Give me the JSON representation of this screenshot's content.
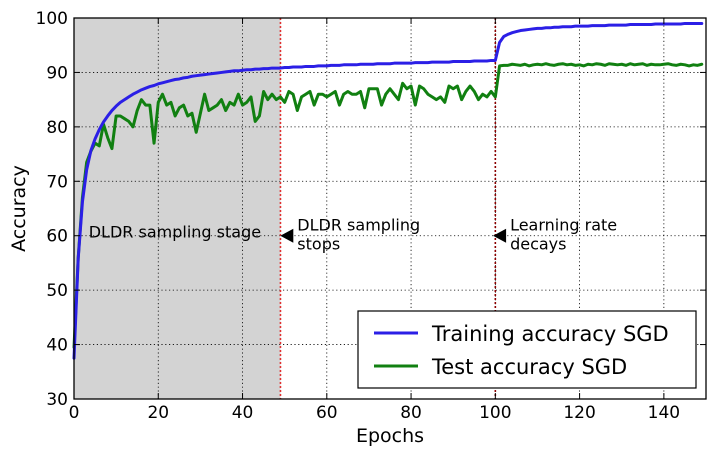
{
  "chart_data": {
    "type": "line",
    "title": "",
    "xlabel": "Epochs",
    "ylabel": "Accuracy",
    "xlim": [
      0,
      150
    ],
    "ylim": [
      30,
      100
    ],
    "xticks": [
      0,
      20,
      40,
      60,
      80,
      100,
      120,
      140
    ],
    "yticks": [
      30,
      40,
      50,
      60,
      70,
      80,
      90,
      100
    ],
    "grid": true,
    "legend_position": "bottom-right",
    "shaded_region": {
      "x_start": 0,
      "x_end": 49,
      "color": "#d3d3d3"
    },
    "vlines": [
      {
        "x": 49,
        "color": "#e03030"
      },
      {
        "x": 100,
        "color": "#8b0000"
      }
    ],
    "annotations": [
      {
        "text": "DLDR sampling stage",
        "x": 3.5,
        "y": 60.6
      },
      {
        "lines": [
          "DLDR sampling",
          "stops"
        ],
        "x": 53,
        "y": 60,
        "arrow": true
      },
      {
        "lines": [
          "Learning rate",
          "decays"
        ],
        "x": 103.5,
        "y": 60,
        "arrow": true
      }
    ],
    "series": [
      {
        "name": "Training accuracy SGD",
        "color": "#2b1fe6",
        "x": [
          0,
          1,
          2,
          3,
          4,
          5,
          6,
          7,
          8,
          9,
          10,
          11,
          12,
          13,
          14,
          15,
          16,
          17,
          18,
          19,
          20,
          21,
          22,
          23,
          24,
          25,
          26,
          27,
          28,
          29,
          30,
          31,
          32,
          33,
          34,
          35,
          36,
          37,
          38,
          39,
          40,
          41,
          42,
          43,
          44,
          45,
          46,
          47,
          48,
          49,
          50,
          51,
          52,
          53,
          54,
          55,
          56,
          57,
          58,
          59,
          60,
          61,
          62,
          63,
          64,
          65,
          66,
          67,
          68,
          69,
          70,
          71,
          72,
          73,
          74,
          75,
          76,
          77,
          78,
          79,
          80,
          81,
          82,
          83,
          84,
          85,
          86,
          87,
          88,
          89,
          90,
          91,
          92,
          93,
          94,
          95,
          96,
          97,
          98,
          99,
          100,
          101,
          102,
          103,
          104,
          105,
          106,
          107,
          108,
          109,
          110,
          111,
          112,
          113,
          114,
          115,
          116,
          117,
          118,
          119,
          120,
          121,
          122,
          123,
          124,
          125,
          126,
          127,
          128,
          129,
          130,
          131,
          132,
          133,
          134,
          135,
          136,
          137,
          138,
          139,
          140,
          141,
          142,
          143,
          144,
          145,
          146,
          147,
          148,
          149
        ],
        "y": [
          37.5,
          55.8,
          66.2,
          72.1,
          75.6,
          77.8,
          79.5,
          80.9,
          82.0,
          83.0,
          83.8,
          84.5,
          85.0,
          85.5,
          86.0,
          86.4,
          86.8,
          87.1,
          87.4,
          87.6,
          87.9,
          88.1,
          88.3,
          88.5,
          88.7,
          88.8,
          89.0,
          89.1,
          89.3,
          89.4,
          89.5,
          89.6,
          89.7,
          89.8,
          89.9,
          90.0,
          90.1,
          90.2,
          90.3,
          90.3,
          90.4,
          90.5,
          90.5,
          90.6,
          90.6,
          90.7,
          90.7,
          90.8,
          90.8,
          90.8,
          90.9,
          90.9,
          91.0,
          91.0,
          91.0,
          91.1,
          91.1,
          91.1,
          91.2,
          91.2,
          91.2,
          91.3,
          91.3,
          91.3,
          91.4,
          91.4,
          91.4,
          91.4,
          91.5,
          91.5,
          91.5,
          91.5,
          91.6,
          91.6,
          91.6,
          91.6,
          91.7,
          91.7,
          91.7,
          91.7,
          91.7,
          91.8,
          91.8,
          91.8,
          91.8,
          91.9,
          91.9,
          91.9,
          91.9,
          91.9,
          92.0,
          92.0,
          92.0,
          92.0,
          92.0,
          92.1,
          92.1,
          92.1,
          92.1,
          92.2,
          92.2,
          95.5,
          96.6,
          97.0,
          97.3,
          97.5,
          97.7,
          97.8,
          97.9,
          98.0,
          98.1,
          98.1,
          98.2,
          98.2,
          98.3,
          98.3,
          98.4,
          98.4,
          98.4,
          98.5,
          98.5,
          98.5,
          98.5,
          98.6,
          98.6,
          98.6,
          98.6,
          98.7,
          98.7,
          98.7,
          98.7,
          98.7,
          98.8,
          98.8,
          98.8,
          98.8,
          98.8,
          98.8,
          98.9,
          98.9,
          98.9,
          98.9,
          98.9,
          98.9,
          98.9,
          99.0,
          99.0,
          99.0,
          99.0,
          99.0
        ]
      },
      {
        "name": "Test accuracy SGD",
        "color": "#118011",
        "x": [
          0,
          1,
          2,
          3,
          4,
          5,
          6,
          7,
          8,
          9,
          10,
          11,
          12,
          13,
          14,
          15,
          16,
          17,
          18,
          19,
          20,
          21,
          22,
          23,
          24,
          25,
          26,
          27,
          28,
          29,
          30,
          31,
          32,
          33,
          34,
          35,
          36,
          37,
          38,
          39,
          40,
          41,
          42,
          43,
          44,
          45,
          46,
          47,
          48,
          49,
          50,
          51,
          52,
          53,
          54,
          55,
          56,
          57,
          58,
          59,
          60,
          61,
          62,
          63,
          64,
          65,
          66,
          67,
          68,
          69,
          70,
          71,
          72,
          73,
          74,
          75,
          76,
          77,
          78,
          79,
          80,
          81,
          82,
          83,
          84,
          85,
          86,
          87,
          88,
          89,
          90,
          91,
          92,
          93,
          94,
          95,
          96,
          97,
          98,
          99,
          100,
          101,
          102,
          103,
          104,
          105,
          106,
          107,
          108,
          109,
          110,
          111,
          112,
          113,
          114,
          115,
          116,
          117,
          118,
          119,
          120,
          121,
          122,
          123,
          124,
          125,
          126,
          127,
          128,
          129,
          130,
          131,
          132,
          133,
          134,
          135,
          136,
          137,
          138,
          139,
          140,
          141,
          142,
          143,
          144,
          145,
          146,
          147,
          148,
          149
        ],
        "y": [
          39.5,
          56,
          67,
          73.5,
          75.5,
          77,
          76.5,
          80.5,
          78,
          76,
          82,
          82,
          81.5,
          81,
          80,
          83,
          85,
          84,
          84,
          77,
          84.5,
          86,
          84,
          84.5,
          82,
          83.5,
          84,
          82,
          82.5,
          79,
          82.5,
          86,
          83,
          83.5,
          84,
          85,
          83,
          84.5,
          84,
          86,
          84,
          84.5,
          85.5,
          81,
          82,
          86.5,
          85,
          86,
          85,
          85.5,
          84.5,
          86.5,
          86,
          83,
          85.5,
          86,
          86.5,
          84,
          86,
          86,
          85.5,
          86,
          86.5,
          84,
          86,
          86.5,
          86,
          86,
          86.5,
          83.5,
          87,
          87,
          87,
          84,
          86,
          87,
          86,
          85,
          88,
          87,
          87.5,
          84,
          87.5,
          87,
          86,
          85.5,
          85,
          85.5,
          84.5,
          87.5,
          87,
          87.5,
          85,
          86.5,
          87.5,
          86.5,
          85,
          86,
          85.5,
          86.5,
          85.5,
          91.2,
          91.3,
          91.3,
          91.5,
          91.4,
          91.3,
          91.5,
          91.2,
          91.4,
          91.5,
          91.4,
          91.6,
          91.4,
          91.3,
          91.5,
          91.6,
          91.4,
          91.5,
          91.3,
          91.4,
          91.2,
          91.5,
          91.4,
          91.6,
          91.5,
          91.3,
          91.6,
          91.5,
          91.4,
          91.5,
          91.3,
          91.6,
          91.4,
          91.5,
          91.6,
          91.3,
          91.5,
          91.4,
          91.4,
          91.5,
          91.6,
          91.4,
          91.3,
          91.5,
          91.4,
          91.2,
          91.4,
          91.3,
          91.5
        ]
      }
    ]
  }
}
